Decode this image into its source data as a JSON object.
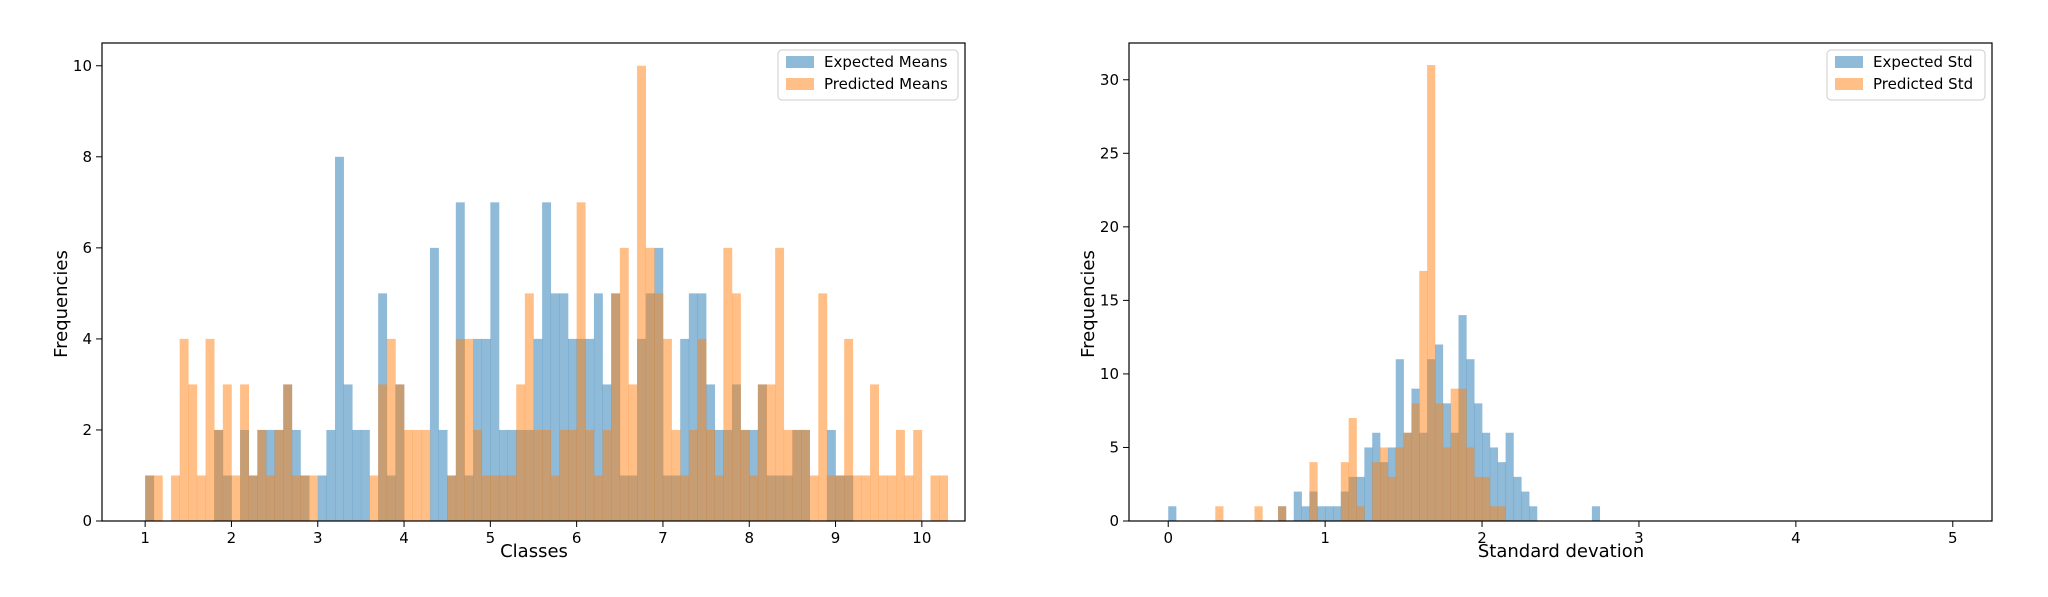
{
  "colors": {
    "expected": "#1f77b4",
    "predicted": "#ff7f0e",
    "axes": "#000000",
    "background": "#ffffff"
  },
  "chart_data": [
    {
      "type": "histogram",
      "xlabel": "Classes",
      "ylabel": "Frequencies",
      "xlim": [
        0.5,
        10.5
      ],
      "ylim": [
        0,
        10.5
      ],
      "xticks": [
        1,
        2,
        3,
        4,
        5,
        6,
        7,
        8,
        9,
        10
      ],
      "yticks": [
        0,
        2,
        4,
        6,
        8,
        10
      ],
      "grid": false,
      "legend_position": "top-right",
      "bin_start": 1,
      "bin_width": 0.1,
      "series": [
        {
          "name": "Expected Means",
          "color": "#1f77b4",
          "opacity": 0.5,
          "counts": [
            1,
            0,
            0,
            0,
            0,
            0,
            0,
            0,
            2,
            1,
            0,
            2,
            1,
            2,
            2,
            2,
            3,
            2,
            1,
            0,
            1,
            2,
            8,
            3,
            2,
            2,
            0,
            5,
            1,
            3,
            0,
            0,
            0,
            6,
            2,
            1,
            7,
            1,
            4,
            4,
            7,
            2,
            2,
            2,
            2,
            4,
            7,
            5,
            5,
            4,
            4,
            4,
            5,
            3,
            5,
            1,
            1,
            4,
            5,
            6,
            1,
            1,
            4,
            5,
            5,
            3,
            2,
            2,
            3,
            2,
            2,
            3,
            1,
            1,
            1,
            2,
            2,
            0,
            0,
            2,
            1,
            1,
            0,
            0,
            0,
            0,
            0,
            0,
            0,
            0,
            0,
            0,
            0,
            0,
            0,
            0,
            0,
            0,
            0,
            0
          ]
        },
        {
          "name": "Predicted Means",
          "color": "#ff7f0e",
          "opacity": 0.5,
          "counts": [
            1,
            1,
            0,
            1,
            4,
            3,
            1,
            4,
            2,
            3,
            1,
            3,
            1,
            2,
            1,
            2,
            3,
            1,
            1,
            1,
            0,
            0,
            0,
            0,
            0,
            0,
            1,
            3,
            4,
            3,
            2,
            2,
            2,
            0,
            0,
            1,
            4,
            4,
            2,
            1,
            1,
            1,
            1,
            3,
            5,
            2,
            2,
            1,
            2,
            2,
            7,
            2,
            1,
            2,
            5,
            6,
            3,
            10,
            6,
            5,
            4,
            2,
            1,
            2,
            4,
            2,
            1,
            6,
            5,
            2,
            1,
            3,
            3,
            6,
            2,
            2,
            2,
            1,
            5,
            1,
            1,
            4,
            1,
            1,
            3,
            1,
            1,
            2,
            1,
            2,
            0,
            1,
            1,
            0,
            0,
            0,
            0,
            0,
            0,
            0
          ]
        }
      ]
    },
    {
      "type": "histogram",
      "xlabel": "Standard devation",
      "ylabel": "Frequencies",
      "xlim": [
        -0.25,
        5.25
      ],
      "ylim": [
        0,
        32.5
      ],
      "xticks": [
        0,
        1,
        2,
        3,
        4,
        5
      ],
      "yticks": [
        0,
        5,
        10,
        15,
        20,
        25,
        30
      ],
      "grid": false,
      "legend_position": "top-right",
      "bin_start": 0,
      "bin_width": 0.05,
      "series": [
        {
          "name": "Expected Std",
          "color": "#1f77b4",
          "opacity": 0.5,
          "counts": [
            1,
            0,
            0,
            0,
            0,
            0,
            0,
            0,
            0,
            0,
            0,
            0,
            0,
            0,
            1,
            0,
            2,
            1,
            2,
            1,
            1,
            1,
            2,
            3,
            3,
            5,
            6,
            4,
            5,
            11,
            6,
            9,
            6,
            11,
            12,
            8,
            6,
            14,
            11,
            8,
            6,
            5,
            4,
            6,
            3,
            2,
            1,
            0,
            0,
            0,
            0,
            0,
            0,
            0,
            1,
            0,
            0,
            0,
            0,
            0,
            0,
            0,
            0,
            0,
            0,
            0,
            0,
            0,
            0,
            0,
            0,
            0,
            0,
            0,
            0,
            0,
            0,
            0,
            0,
            0,
            0,
            0,
            0,
            0,
            0,
            0,
            0,
            0,
            0,
            0,
            0,
            0,
            0,
            0,
            0,
            0,
            0,
            0,
            0,
            0
          ]
        },
        {
          "name": "Predicted Std",
          "color": "#ff7f0e",
          "opacity": 0.5,
          "counts": [
            0,
            0,
            0,
            0,
            0,
            0,
            1,
            0,
            0,
            0,
            0,
            1,
            0,
            0,
            1,
            0,
            0,
            0,
            4,
            0,
            0,
            0,
            4,
            7,
            1,
            0,
            4,
            5,
            3,
            5,
            6,
            8,
            17,
            31,
            8,
            5,
            9,
            9,
            5,
            3,
            3,
            1,
            1,
            0,
            0,
            0,
            0,
            0,
            0,
            0,
            0,
            0,
            0,
            0,
            0,
            0,
            0,
            0,
            0,
            0,
            0,
            0,
            0,
            0,
            0,
            0,
            0,
            0,
            0,
            0,
            0,
            0,
            0,
            0,
            0,
            0,
            0,
            0,
            0,
            0,
            0,
            0,
            0,
            0,
            0,
            0,
            0,
            0,
            0,
            0,
            0,
            0,
            0,
            0,
            0,
            0,
            0,
            0,
            0,
            0
          ]
        }
      ]
    }
  ]
}
